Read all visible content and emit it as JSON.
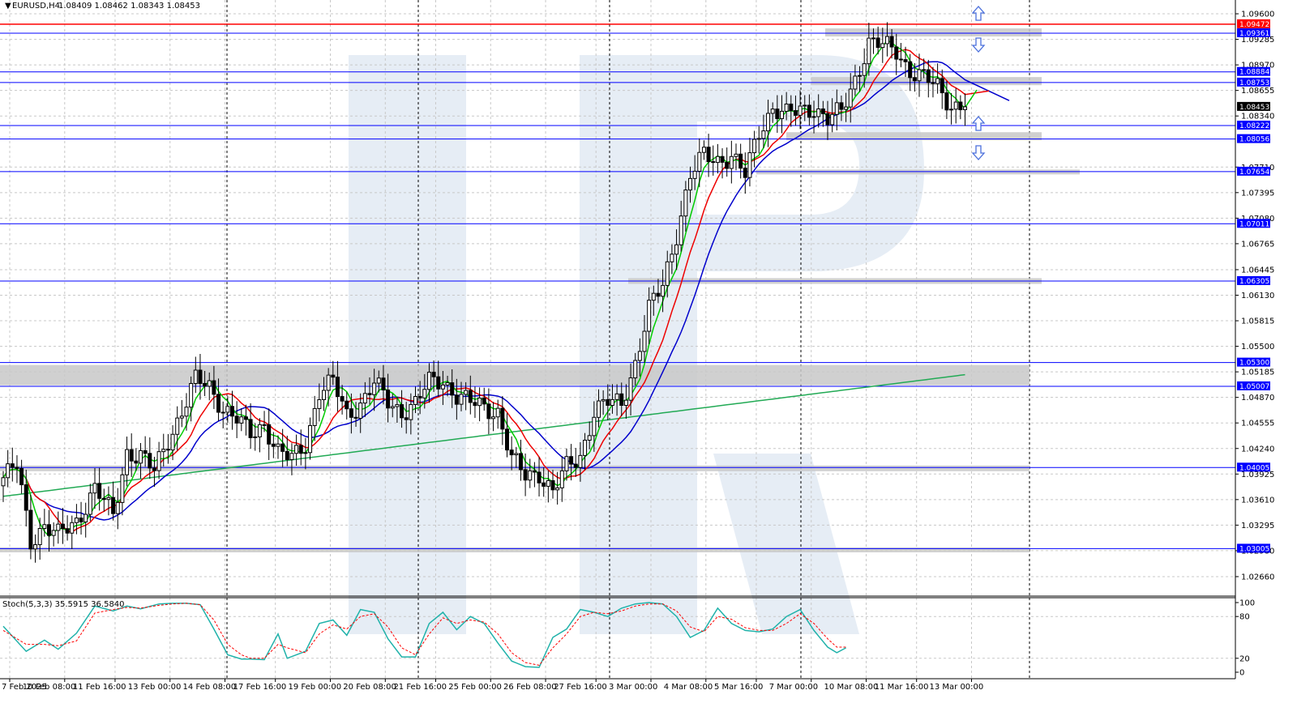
{
  "header": {
    "symbol_text": "EURUSD,H4",
    "ohlc_text": "1.08409 1.08462 1.08343 1.08453",
    "stoch_text": "Stoch(5,3,3) 35.5915 36.5840"
  },
  "colors": {
    "red_level": "#ff0000",
    "blue_level": "#0000ff",
    "ma_green": "#00cc00",
    "ma_red": "#ee0000",
    "ma_blue": "#0000cc",
    "ma_slow": "#22aa55",
    "stoch_main": "#20b2aa",
    "stoch_signal": "#ff0000",
    "zone": "#c8c8c8",
    "watermark": "#e3eaf3",
    "arrow": "#4a6fdc"
  },
  "icons": [
    "arrow-up-icon",
    "arrow-down-icon",
    "triangle-down-icon"
  ],
  "chart_data": {
    "type": "candlestick",
    "symbol": "EURUSD",
    "timeframe": "H4",
    "last_price": 1.08453,
    "ylim": [
      1.0245,
      1.0975
    ],
    "price_ticks": [
      1.096,
      1.09285,
      1.0897,
      1.08655,
      1.0834,
      1.0771,
      1.07395,
      1.0708,
      1.06765,
      1.06445,
      1.0613,
      1.05815,
      1.055,
      1.05185,
      1.0487,
      1.04555,
      1.0424,
      1.03925,
      1.0361,
      1.03295,
      1.0298,
      1.0266
    ],
    "levels": [
      {
        "label": "1.09472",
        "value": 1.09472,
        "color": "red"
      },
      {
        "label": "1.09361",
        "value": 1.09361,
        "color": "blue"
      },
      {
        "label": "1.08884",
        "value": 1.08884,
        "color": "blue"
      },
      {
        "label": "1.08753",
        "value": 1.08753,
        "color": "blue"
      },
      {
        "label": "1.08453",
        "value": 1.08453,
        "color": "black"
      },
      {
        "label": "1.08222",
        "value": 1.08222,
        "color": "blue"
      },
      {
        "label": "1.08056",
        "value": 1.08056,
        "color": "blue"
      },
      {
        "label": "1.07654",
        "value": 1.07654,
        "color": "blue"
      },
      {
        "label": "1.07011",
        "value": 1.07011,
        "color": "blue"
      },
      {
        "label": "1.06305",
        "value": 1.06305,
        "color": "blue"
      },
      {
        "label": "1.05300",
        "value": 1.053,
        "color": "blue"
      },
      {
        "label": "1.05007",
        "value": 1.05007,
        "color": "blue"
      },
      {
        "label": "1.04005",
        "value": 1.04005,
        "color": "blue"
      },
      {
        "label": "1.03005",
        "value": 1.03005,
        "color": "blue"
      }
    ],
    "zones": [
      {
        "from": 1.0932,
        "to": 1.0942,
        "x_from": "11 Mar 08:00",
        "x_to": "14 Mar 08:00"
      },
      {
        "from": 1.0872,
        "to": 1.0882,
        "x_from": "7 Mar 00:00",
        "x_to": "14 Mar 08:00"
      },
      {
        "from": 1.0804,
        "to": 1.0814,
        "x_from": "7 Mar 08:00",
        "x_to": "14 Mar 08:00"
      },
      {
        "from": 1.0762,
        "to": 1.0768,
        "x_from": "5 Mar 16:00",
        "x_to": "14 Mar 16:00"
      },
      {
        "from": 1.0627,
        "to": 1.0634,
        "x_from": "4 Mar 16:00",
        "x_to": "14 Mar 08:00"
      },
      {
        "from": 1.0502,
        "to": 1.0527,
        "x_from": "7 Feb 2025",
        "x_to": "14 Mar 00:00"
      },
      {
        "from": 1.0396,
        "to": 1.0403,
        "x_from": "7 Feb 2025",
        "x_to": "14 Mar 00:00"
      },
      {
        "from": 1.0296,
        "to": 1.0302,
        "x_from": "7 Feb 2025",
        "x_to": "14 Mar 00:00"
      }
    ],
    "x_tick_labels": [
      "7 Feb 2025",
      "10 Feb 08:00",
      "11 Feb 16:00",
      "13 Feb 00:00",
      "14 Feb 08:00",
      "17 Feb 16:00",
      "19 Feb 00:00",
      "20 Feb 08:00",
      "21 Feb 16:00",
      "25 Feb 00:00",
      "26 Feb 08:00",
      "27 Feb 16:00",
      "3 Mar 00:00",
      "4 Mar 08:00",
      "5 Mar 16:00",
      "7 Mar 00:00",
      "10 Mar 08:00",
      "11 Mar 16:00",
      "13 Mar 00:00"
    ],
    "anchors": [
      [
        0,
        1.0388
      ],
      [
        3,
        1.0402
      ],
      [
        6,
        1.031
      ],
      [
        9,
        1.033
      ],
      [
        12,
        1.0316
      ],
      [
        16,
        1.0334
      ],
      [
        20,
        1.0376
      ],
      [
        24,
        1.034
      ],
      [
        27,
        1.042
      ],
      [
        30,
        1.0415
      ],
      [
        33,
        1.0395
      ],
      [
        36,
        1.0435
      ],
      [
        39,
        1.047
      ],
      [
        42,
        1.0508
      ],
      [
        45,
        1.05
      ],
      [
        48,
        1.0475
      ],
      [
        51,
        1.046
      ],
      [
        54,
        1.044
      ],
      [
        57,
        1.0455
      ],
      [
        60,
        1.042
      ],
      [
        63,
        1.041
      ],
      [
        66,
        1.043
      ],
      [
        69,
        1.0495
      ],
      [
        72,
        1.0505
      ],
      [
        75,
        1.0465
      ],
      [
        78,
        1.048
      ],
      [
        81,
        1.0505
      ],
      [
        84,
        1.048
      ],
      [
        87,
        1.047
      ],
      [
        90,
        1.048
      ],
      [
        93,
        1.0505
      ],
      [
        96,
        1.0508
      ],
      [
        99,
        1.049
      ],
      [
        102,
        1.048
      ],
      [
        105,
        1.0475
      ],
      [
        108,
        1.047
      ],
      [
        111,
        1.041
      ],
      [
        114,
        1.039
      ],
      [
        117,
        1.0395
      ],
      [
        120,
        1.037
      ],
      [
        123,
        1.04
      ],
      [
        126,
        1.0415
      ],
      [
        129,
        1.047
      ],
      [
        132,
        1.048
      ],
      [
        135,
        1.048
      ],
      [
        138,
        1.053
      ],
      [
        141,
        1.0595
      ],
      [
        144,
        1.0625
      ],
      [
        147,
        1.069
      ],
      [
        150,
        1.076
      ],
      [
        153,
        1.0785
      ],
      [
        156,
        1.078
      ],
      [
        159,
        1.0785
      ],
      [
        162,
        1.076
      ],
      [
        165,
        1.0815
      ],
      [
        168,
        1.0845
      ],
      [
        171,
        1.0835
      ],
      [
        174,
        1.084
      ],
      [
        177,
        1.0845
      ],
      [
        180,
        1.083
      ],
      [
        183,
        1.0838
      ],
      [
        186,
        1.088
      ],
      [
        189,
        1.0925
      ],
      [
        192,
        1.092
      ],
      [
        195,
        1.0915
      ],
      [
        198,
        1.089
      ],
      [
        201,
        1.088
      ],
      [
        204,
        1.087
      ],
      [
        207,
        1.0848
      ],
      [
        210,
        1.0845
      ]
    ],
    "stoch_ticks": [
      100,
      80,
      20,
      0
    ],
    "stoch_main": [
      [
        0,
        66
      ],
      [
        5,
        30
      ],
      [
        9,
        46
      ],
      [
        12,
        33
      ],
      [
        16,
        56
      ],
      [
        20,
        95
      ],
      [
        24,
        88
      ],
      [
        27,
        95
      ],
      [
        30,
        91
      ],
      [
        34,
        98
      ],
      [
        37,
        99
      ],
      [
        40,
        99
      ],
      [
        43,
        97
      ],
      [
        46,
        62
      ],
      [
        49,
        25
      ],
      [
        52,
        19
      ],
      [
        54,
        19
      ],
      [
        57,
        18
      ],
      [
        60,
        55
      ],
      [
        62,
        20
      ],
      [
        66,
        30
      ],
      [
        69,
        70
      ],
      [
        72,
        75
      ],
      [
        75,
        53
      ],
      [
        78,
        90
      ],
      [
        81,
        86
      ],
      [
        84,
        48
      ],
      [
        87,
        22
      ],
      [
        90,
        22
      ],
      [
        93,
        70
      ],
      [
        96,
        86
      ],
      [
        99,
        61
      ],
      [
        102,
        80
      ],
      [
        105,
        70
      ],
      [
        108,
        42
      ],
      [
        111,
        16
      ],
      [
        114,
        8
      ],
      [
        117,
        7
      ],
      [
        120,
        50
      ],
      [
        123,
        62
      ],
      [
        126,
        90
      ],
      [
        129,
        86
      ],
      [
        132,
        80
      ],
      [
        135,
        92
      ],
      [
        138,
        98
      ],
      [
        141,
        100
      ],
      [
        144,
        98
      ],
      [
        147,
        80
      ],
      [
        150,
        50
      ],
      [
        153,
        60
      ],
      [
        156,
        92
      ],
      [
        159,
        70
      ],
      [
        162,
        60
      ],
      [
        165,
        58
      ],
      [
        168,
        62
      ],
      [
        171,
        80
      ],
      [
        174,
        90
      ],
      [
        177,
        60
      ],
      [
        180,
        36
      ],
      [
        182,
        28
      ],
      [
        184,
        35
      ]
    ],
    "stoch_signal": [
      [
        0,
        60
      ],
      [
        5,
        40
      ],
      [
        9,
        40
      ],
      [
        12,
        38
      ],
      [
        16,
        45
      ],
      [
        20,
        85
      ],
      [
        24,
        90
      ],
      [
        27,
        93
      ],
      [
        30,
        92
      ],
      [
        34,
        96
      ],
      [
        37,
        98
      ],
      [
        40,
        99
      ],
      [
        43,
        97
      ],
      [
        46,
        75
      ],
      [
        49,
        40
      ],
      [
        52,
        25
      ],
      [
        54,
        20
      ],
      [
        57,
        20
      ],
      [
        60,
        40
      ],
      [
        62,
        35
      ],
      [
        66,
        28
      ],
      [
        69,
        55
      ],
      [
        72,
        68
      ],
      [
        75,
        62
      ],
      [
        78,
        80
      ],
      [
        81,
        84
      ],
      [
        84,
        65
      ],
      [
        87,
        35
      ],
      [
        90,
        25
      ],
      [
        93,
        55
      ],
      [
        96,
        78
      ],
      [
        99,
        70
      ],
      [
        102,
        75
      ],
      [
        105,
        72
      ],
      [
        108,
        55
      ],
      [
        111,
        28
      ],
      [
        114,
        14
      ],
      [
        117,
        10
      ],
      [
        120,
        35
      ],
      [
        123,
        55
      ],
      [
        126,
        80
      ],
      [
        129,
        86
      ],
      [
        132,
        84
      ],
      [
        135,
        88
      ],
      [
        138,
        95
      ],
      [
        141,
        98
      ],
      [
        144,
        98
      ],
      [
        147,
        88
      ],
      [
        150,
        65
      ],
      [
        153,
        58
      ],
      [
        156,
        80
      ],
      [
        159,
        76
      ],
      [
        162,
        64
      ],
      [
        165,
        60
      ],
      [
        168,
        60
      ],
      [
        171,
        70
      ],
      [
        174,
        84
      ],
      [
        177,
        70
      ],
      [
        180,
        48
      ],
      [
        182,
        36
      ],
      [
        184,
        36
      ]
    ]
  }
}
